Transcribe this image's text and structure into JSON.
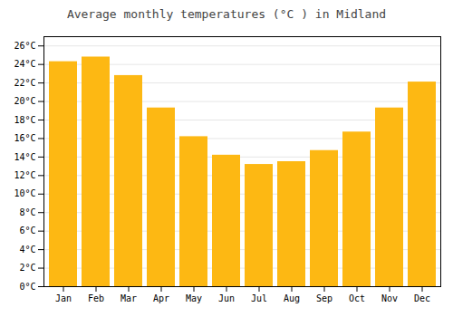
{
  "chart_data": {
    "type": "bar",
    "title": "Average monthly temperatures (°C ) in Midland",
    "categories": [
      "Jan",
      "Feb",
      "Mar",
      "Apr",
      "May",
      "Jun",
      "Jul",
      "Aug",
      "Sep",
      "Oct",
      "Nov",
      "Dec"
    ],
    "values": [
      24.3,
      24.8,
      22.8,
      19.3,
      16.2,
      14.2,
      13.2,
      13.5,
      14.7,
      16.7,
      19.3,
      22.1
    ],
    "color": "#FDB813",
    "ylim": [
      0,
      27
    ],
    "yticks": [
      {
        "value": 0,
        "label": "0°C"
      },
      {
        "value": 2,
        "label": "2°C"
      },
      {
        "value": 4,
        "label": "4°C"
      },
      {
        "value": 6,
        "label": "6°C"
      },
      {
        "value": 8,
        "label": "8°C"
      },
      {
        "value": 10,
        "label": "10°C"
      },
      {
        "value": 12,
        "label": "12°C"
      },
      {
        "value": 14,
        "label": "14°C"
      },
      {
        "value": 16,
        "label": "16°C"
      },
      {
        "value": 18,
        "label": "18°C"
      },
      {
        "value": 20,
        "label": "20°C"
      },
      {
        "value": 22,
        "label": "22°C"
      },
      {
        "value": 24,
        "label": "24°C"
      },
      {
        "value": 26,
        "label": "26°C"
      }
    ],
    "grid": true
  }
}
